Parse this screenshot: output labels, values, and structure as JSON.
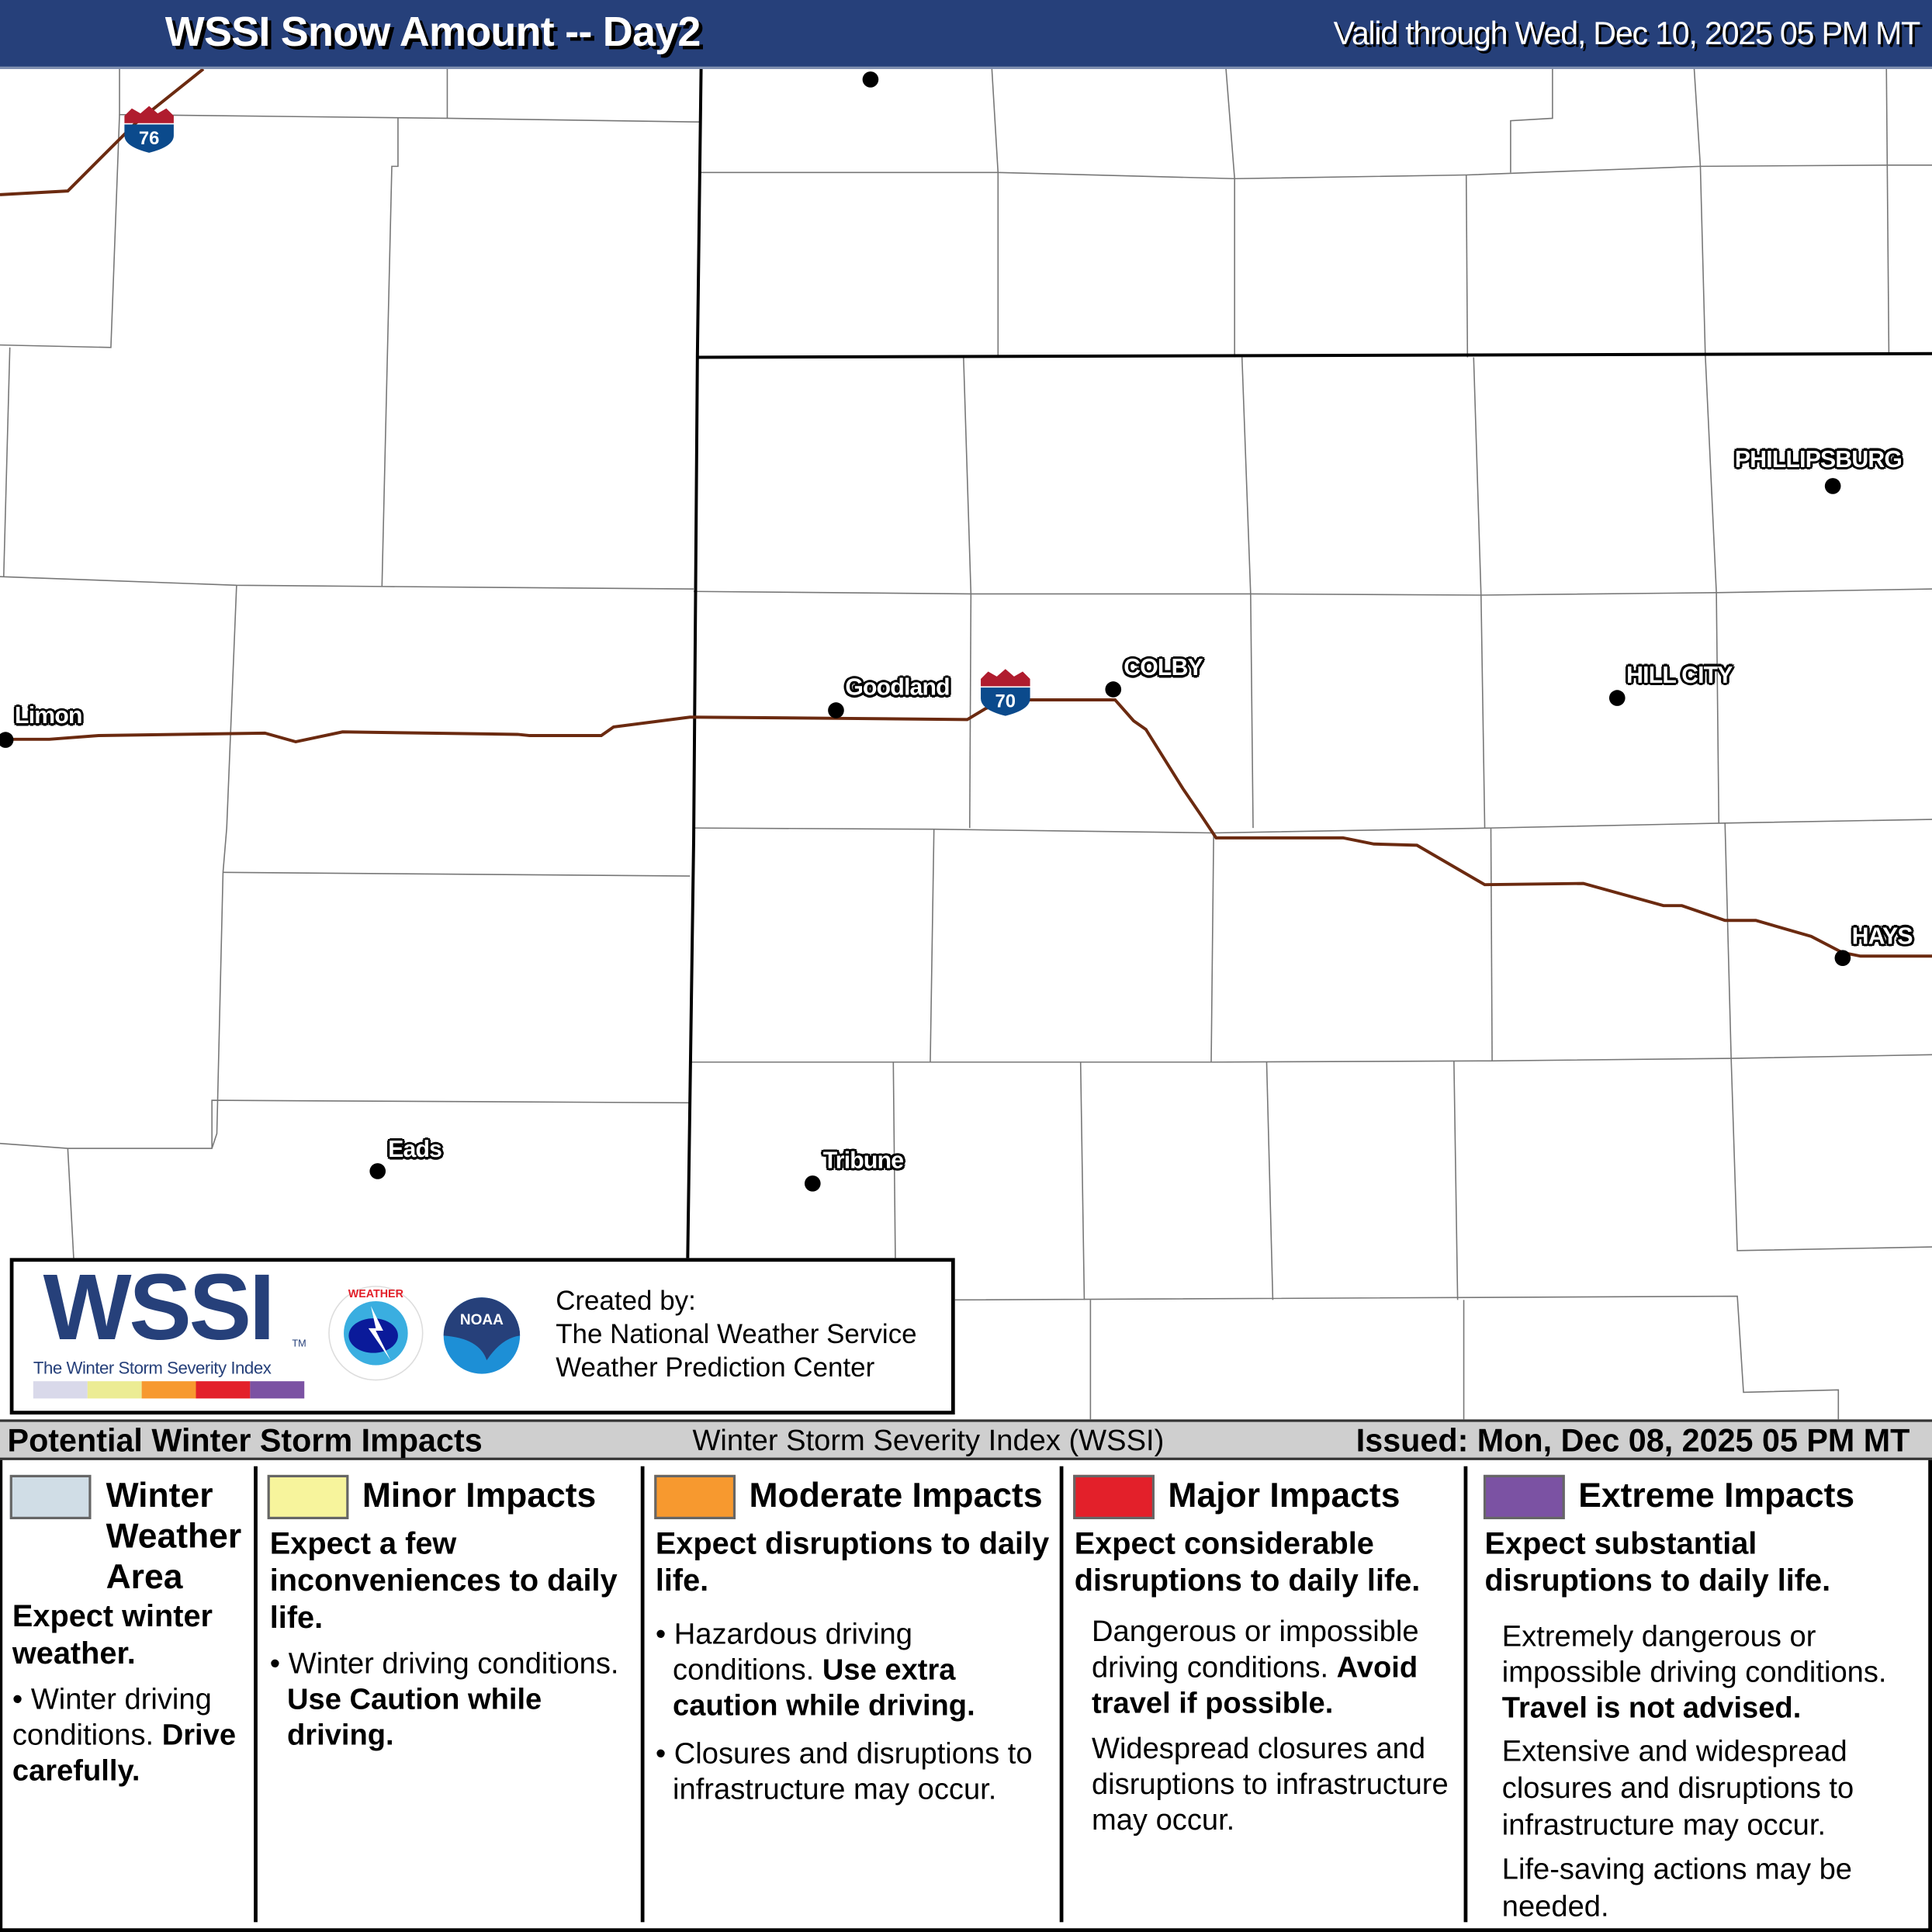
{
  "header": {
    "title": "WSSI Snow Amount -- Day2",
    "valid": "Valid through Wed, Dec 10, 2025 05 PM MT",
    "bg_color": "#26407a"
  },
  "map": {
    "interstates": [
      {
        "number": "76"
      },
      {
        "number": "70"
      }
    ],
    "cities": [
      {
        "name": "Limon"
      },
      {
        "name": "Goodland"
      },
      {
        "name": "COLBY"
      },
      {
        "name": "HILL CITY"
      },
      {
        "name": "PHILLIPSBURG"
      },
      {
        "name": "HAYS"
      },
      {
        "name": "Eads"
      },
      {
        "name": "Tribune"
      }
    ],
    "road_color": "#6b2a10"
  },
  "logo": {
    "wssi": "WSSI",
    "tm": "TM",
    "subtitle": "The Winter Storm Severity Index",
    "nws_icon": "nws-logo",
    "noaa_icon": "noaa-logo",
    "noaa_text": "NOAA",
    "created_by": "Created by:",
    "org1": "The National Weather Service",
    "org2": "Weather Prediction Center"
  },
  "band": {
    "left": "Potential Winter Storm Impacts",
    "mid": "Winter Storm Severity Index (WSSI)",
    "right": "Issued: Mon, Dec 08, 2025 05 PM MT"
  },
  "legend": [
    {
      "title": "Winter Weather Area",
      "color": "#d0dde6",
      "summary": "Expect winter weather.",
      "bullets": [
        {
          "text": "Winter driving conditions.",
          "bold": "Drive carefully."
        }
      ]
    },
    {
      "title": "Minor Impacts",
      "color": "#f7f49c",
      "summary": "Expect a few inconveniences to daily life.",
      "bullets": [
        {
          "text": "Winter driving conditions.",
          "bold": "Use Caution while driving."
        }
      ]
    },
    {
      "title": "Moderate Impacts",
      "color": "#f7992f",
      "summary": "Expect disruptions to daily life.",
      "bullets": [
        {
          "text": "Hazardous driving conditions.",
          "bold": "Use extra caution while driving."
        },
        {
          "text": "Closures and disruptions to infrastructure may occur.",
          "bold": ""
        }
      ]
    },
    {
      "title": "Major Impacts",
      "color": "#e3202a",
      "summary": "Expect considerable disruptions to daily life.",
      "paras": [
        {
          "text": "Dangerous or impossible driving conditions.",
          "bold": "Avoid travel if possible."
        },
        {
          "text": "Widespread closures and disruptions to infrastructure may occur.",
          "bold": ""
        }
      ]
    },
    {
      "title": "Extreme Impacts",
      "color": "#7b52a3",
      "summary": "Expect substantial disruptions to daily life.",
      "paras": [
        {
          "text": "Extremely dangerous or impossible driving conditions.",
          "bold": "Travel is not advised."
        },
        {
          "text": "Extensive and widespread closures and disruptions to infrastructure may occur.",
          "bold": ""
        },
        {
          "text": "Life-saving actions may be needed.",
          "bold": ""
        }
      ]
    }
  ]
}
